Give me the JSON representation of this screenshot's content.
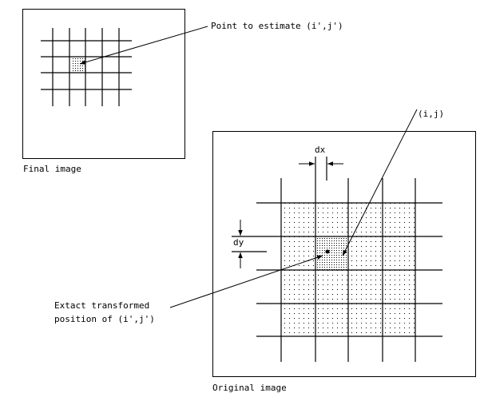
{
  "labels": {
    "point_to_estimate": "Point to estimate (i',j')",
    "final_image": "Final image",
    "ij": "(i,j)",
    "dx": "dx",
    "dy": "dy",
    "exact_line1": "Extact transformed",
    "exact_line2": "position of (i',j')",
    "original_image": "Original image"
  },
  "colors": {
    "line": "#000000",
    "background": "#ffffff"
  }
}
